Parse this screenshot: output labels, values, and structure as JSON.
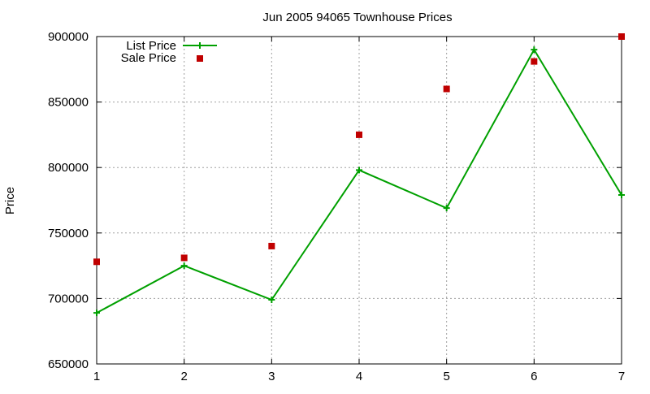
{
  "chart_data": {
    "type": "line",
    "title": "Jun 2005 94065 Townhouse Prices",
    "xlabel": "",
    "ylabel": "Price",
    "x": [
      1,
      2,
      3,
      4,
      5,
      6,
      7
    ],
    "xlim": [
      1,
      7
    ],
    "ylim": [
      650000,
      900000
    ],
    "xticks": [
      "1",
      "2",
      "3",
      "4",
      "5",
      "6",
      "7"
    ],
    "yticks": [
      "650000",
      "700000",
      "750000",
      "800000",
      "850000",
      "900000"
    ],
    "grid": true,
    "legend_position": "top-left",
    "series": [
      {
        "name": "List Price",
        "style": "line-with-plus-markers",
        "color": "#00a000",
        "values": [
          689000,
          725000,
          699000,
          798000,
          769000,
          890000,
          779000
        ]
      },
      {
        "name": "Sale Price",
        "style": "square-markers",
        "color": "#c00000",
        "values": [
          728000,
          731000,
          740000,
          825000,
          860000,
          881000,
          900000
        ]
      }
    ]
  }
}
